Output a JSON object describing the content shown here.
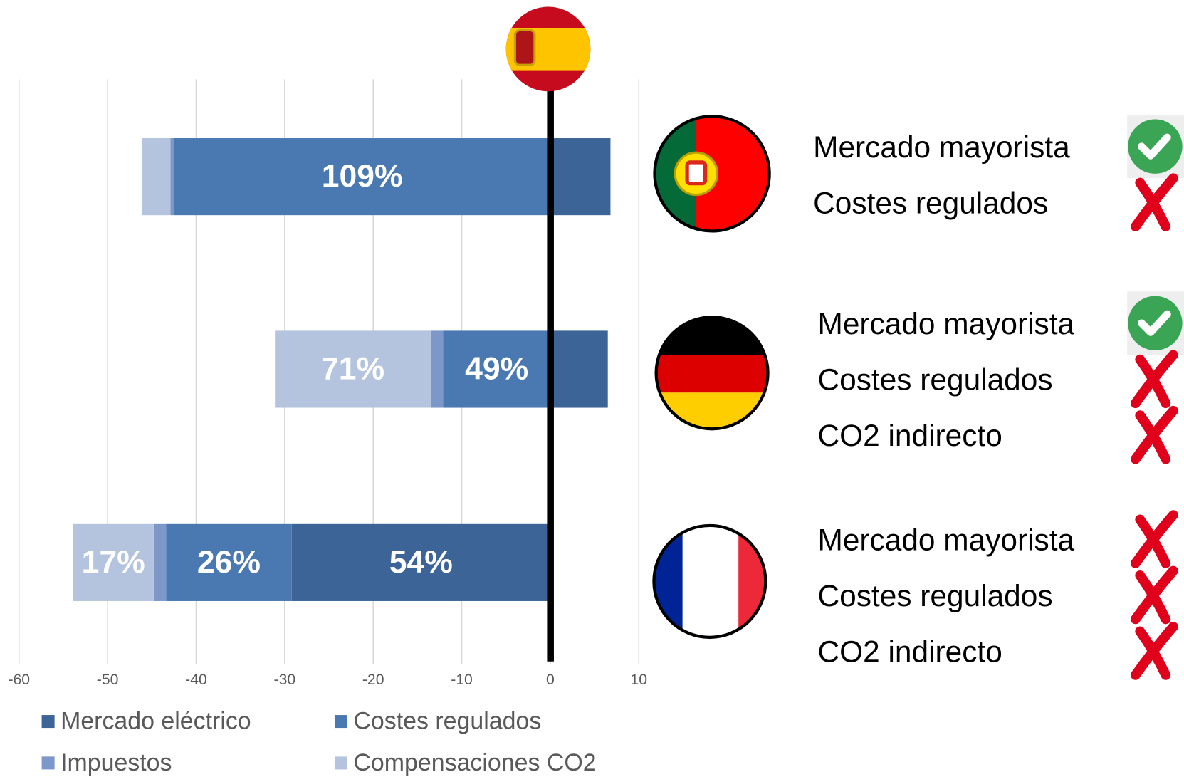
{
  "chart_data": {
    "type": "diverging-stacked-barh",
    "categories": [
      null,
      null,
      null
    ],
    "series": [
      {
        "name": "Mercado eléctrico",
        "color": "#3d6496",
        "values": [
          6.8,
          6.5,
          -29.2
        ],
        "bar_labels": [
          null,
          null,
          "54%"
        ]
      },
      {
        "name": "Costes regulados",
        "color": "#4a78b0",
        "values": [
          -42.5,
          -12.1,
          -14.2
        ],
        "bar_labels": [
          "109%",
          "49%",
          "26%"
        ]
      },
      {
        "name": "Impuestos",
        "color": "#7b98c8",
        "values": [
          -0.4,
          -1.4,
          -1.4
        ],
        "bar_labels": [
          null,
          null,
          null
        ]
      },
      {
        "name": "Compensaciones CO2",
        "color": "#b5c4de",
        "values": [
          -3.2,
          -17.6,
          -9.1
        ],
        "bar_labels": [
          null,
          "71%",
          "17%"
        ]
      }
    ],
    "xlim": [
      -60,
      10
    ],
    "xticks": [
      -60,
      -50,
      -40,
      -30,
      -20,
      -10,
      0,
      10
    ],
    "grid": true
  },
  "panels": [
    {
      "lines": [
        {
          "text": "Mercado mayorista",
          "ok": true
        },
        {
          "text": "Costes regulados",
          "ok": false
        }
      ]
    },
    {
      "lines": [
        {
          "text": "Mercado mayorista",
          "ok": true
        },
        {
          "text": "Costes regulados",
          "ok": false
        },
        {
          "text": "CO2 indirecto",
          "ok": false
        }
      ]
    },
    {
      "lines": [
        {
          "text": "Mercado mayorista",
          "ok": false
        },
        {
          "text": "Costes regulados",
          "ok": false
        },
        {
          "text": "CO2 indirecto",
          "ok": false
        }
      ]
    }
  ]
}
